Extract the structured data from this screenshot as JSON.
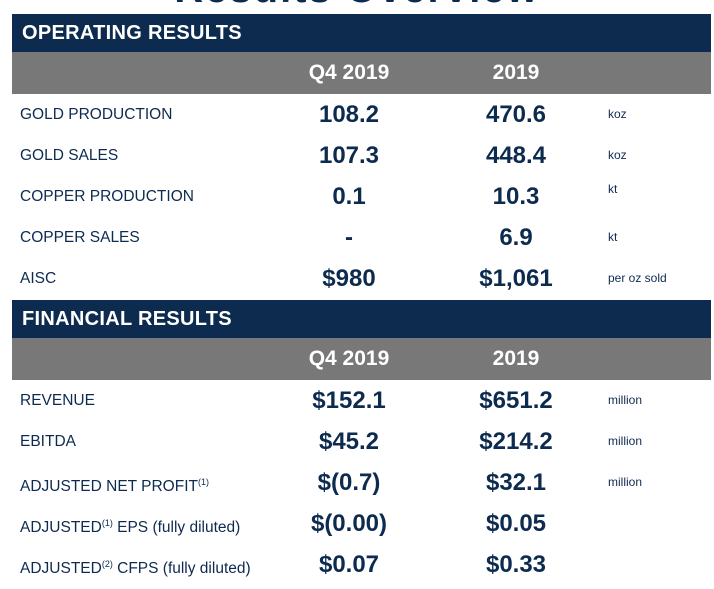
{
  "heading": "Results Overview",
  "operating": {
    "title": "OPERATING RESULTS",
    "col_q": "Q4 2019",
    "col_y": "2019",
    "rows": [
      {
        "label": "GOLD PRODUCTION",
        "q4": "108.2",
        "fy": "470.6",
        "unit": "koz"
      },
      {
        "label": "GOLD SALES",
        "q4": "107.3",
        "fy": "448.4",
        "unit": "koz"
      },
      {
        "label": "COPPER PRODUCTION",
        "q4": "0.1",
        "fy": "10.3",
        "unit": "kt"
      },
      {
        "label": "COPPER SALES",
        "q4": "-",
        "fy": "6.9",
        "unit": "kt"
      },
      {
        "label": "AISC",
        "q4": "$980",
        "fy": "$1,061",
        "unit": "per oz sold"
      }
    ]
  },
  "financial": {
    "title": "FINANCIAL RESULTS",
    "col_q": "Q4 2019",
    "col_y": "2019",
    "rows": [
      {
        "label": "REVENUE",
        "q4": "$152.1",
        "fy": "$651.2",
        "unit": "million"
      },
      {
        "label": "EBITDA",
        "q4": "$45.2",
        "fy": "$214.2",
        "unit": "million"
      },
      {
        "label": "ADJUSTED NET PROFIT",
        "sup": "(1)",
        "suffix": "",
        "q4": "$(0.7)",
        "fy": "$32.1",
        "unit": "million"
      },
      {
        "label": "ADJUSTED",
        "sup": "(1)",
        "suffix": " EPS (fully diluted)",
        "q4": "$(0.00)",
        "fy": "$0.05",
        "unit": ""
      },
      {
        "label": "ADJUSTED",
        "sup": "(2)",
        "suffix": " CFPS (fully diluted)",
        "q4": "$0.07",
        "fy": "$0.33",
        "unit": ""
      }
    ]
  }
}
